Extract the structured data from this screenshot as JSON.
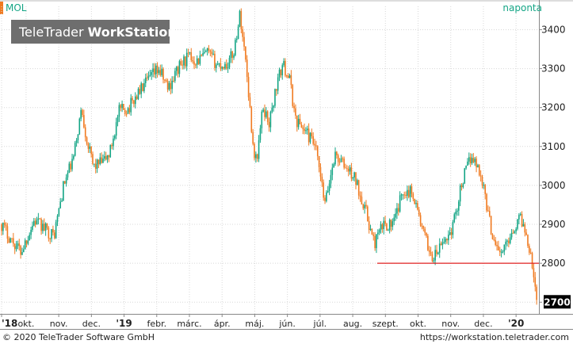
{
  "header": {
    "symbol": "MOL",
    "interval": "naponta",
    "brand_regular": "TeleTrader ",
    "brand_bold": "WorkStation"
  },
  "footer": {
    "copyright": "© 2020 TeleTrader Software GmbH",
    "url": "https://workstation.teletrader.com"
  },
  "colors": {
    "up": "#14a585",
    "down": "#f07a20",
    "support_line": "#e02020",
    "grid": "#d8d8d8",
    "brand_box": "#6e6e6e",
    "last_price_box": "#000000"
  },
  "chart_data": {
    "type": "candlestick",
    "title": "",
    "xlabel": "",
    "ylabel": "",
    "ylim": [
      2670,
      3460
    ],
    "yticks": [
      2700,
      2800,
      2900,
      3000,
      3100,
      3200,
      3300,
      3400
    ],
    "xticks": [
      {
        "label": "'18",
        "bold": true,
        "month": 9
      },
      {
        "label": "okt.",
        "bold": false,
        "month": 9.75
      },
      {
        "label": "nov.",
        "bold": false,
        "month": 10.75
      },
      {
        "label": "dec.",
        "bold": false,
        "month": 11.75
      },
      {
        "label": "'19",
        "bold": true,
        "month": 12.75
      },
      {
        "label": "febr.",
        "bold": false,
        "month": 13.75
      },
      {
        "label": "márc.",
        "bold": false,
        "month": 14.75
      },
      {
        "label": "ápr.",
        "bold": false,
        "month": 15.75
      },
      {
        "label": "máj.",
        "bold": false,
        "month": 16.75
      },
      {
        "label": "jún.",
        "bold": false,
        "month": 17.75
      },
      {
        "label": "júl.",
        "bold": false,
        "month": 18.75
      },
      {
        "label": "aug.",
        "bold": false,
        "month": 19.75
      },
      {
        "label": "szept.",
        "bold": false,
        "month": 20.75
      },
      {
        "label": "okt.",
        "bold": false,
        "month": 21.75
      },
      {
        "label": "nov.",
        "bold": false,
        "month": 22.75
      },
      {
        "label": "dec.",
        "bold": false,
        "month": 23.75
      },
      {
        "label": "'20",
        "bold": true,
        "month": 24.75
      }
    ],
    "x_range_months": [
      9,
      25.45
    ],
    "last_price_label": "2700",
    "support_level": 2800,
    "support_from_month": 20.5,
    "price_path": [
      [
        9.0,
        2900
      ],
      [
        9.3,
        2860
      ],
      [
        9.6,
        2830
      ],
      [
        10.0,
        2910
      ],
      [
        10.3,
        2890
      ],
      [
        10.6,
        2870
      ],
      [
        10.9,
        3000
      ],
      [
        11.2,
        3070
      ],
      [
        11.45,
        3200
      ],
      [
        11.6,
        3120
      ],
      [
        11.8,
        3050
      ],
      [
        12.1,
        3060
      ],
      [
        12.3,
        3080
      ],
      [
        12.6,
        3190
      ],
      [
        12.9,
        3200
      ],
      [
        13.2,
        3240
      ],
      [
        13.5,
        3270
      ],
      [
        13.8,
        3300
      ],
      [
        14.1,
        3250
      ],
      [
        14.4,
        3300
      ],
      [
        14.7,
        3330
      ],
      [
        15.0,
        3320
      ],
      [
        15.3,
        3340
      ],
      [
        15.6,
        3310
      ],
      [
        15.9,
        3310
      ],
      [
        16.1,
        3340
      ],
      [
        16.3,
        3440
      ],
      [
        16.5,
        3300
      ],
      [
        16.7,
        3100
      ],
      [
        16.8,
        3060
      ],
      [
        17.0,
        3200
      ],
      [
        17.2,
        3160
      ],
      [
        17.4,
        3250
      ],
      [
        17.6,
        3310
      ],
      [
        17.8,
        3280
      ],
      [
        18.0,
        3170
      ],
      [
        18.3,
        3140
      ],
      [
        18.6,
        3100
      ],
      [
        18.9,
        2950
      ],
      [
        19.2,
        3080
      ],
      [
        19.5,
        3050
      ],
      [
        19.8,
        3020
      ],
      [
        20.1,
        2950
      ],
      [
        20.4,
        2850
      ],
      [
        20.7,
        2900
      ],
      [
        21.0,
        2900
      ],
      [
        21.3,
        2990
      ],
      [
        21.6,
        2980
      ],
      [
        21.9,
        2880
      ],
      [
        22.2,
        2810
      ],
      [
        22.5,
        2850
      ],
      [
        22.8,
        2890
      ],
      [
        23.1,
        3010
      ],
      [
        23.4,
        3080
      ],
      [
        23.7,
        3020
      ],
      [
        24.0,
        2880
      ],
      [
        24.3,
        2820
      ],
      [
        24.6,
        2880
      ],
      [
        24.9,
        2920
      ],
      [
        25.2,
        2830
      ],
      [
        25.35,
        2730
      ],
      [
        25.4,
        2690
      ]
    ]
  }
}
